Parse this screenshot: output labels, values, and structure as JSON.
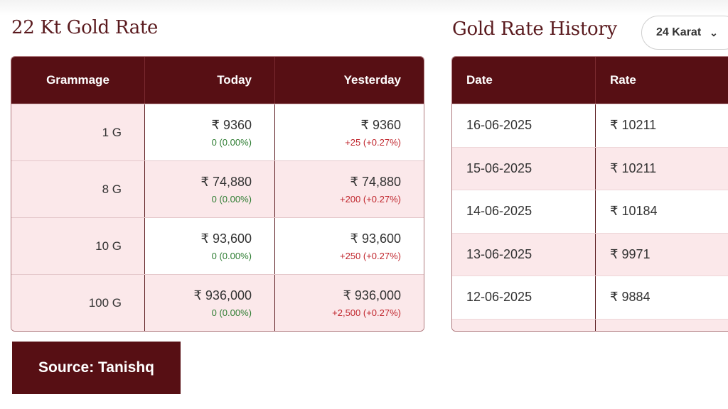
{
  "left_heading": "22 Kt Gold Rate",
  "right_heading": "Gold Rate History",
  "karat_select": {
    "value": "24 Karat"
  },
  "rate_table": {
    "headers": [
      "Grammage",
      "Today",
      "Yesterday"
    ],
    "rows": [
      {
        "grammage": "1 G",
        "today": "₹ 9360",
        "today_change": "0 (0.00%)",
        "yesterday": "₹ 9360",
        "yesterday_change": "+25 (+0.27%)"
      },
      {
        "grammage": "8 G",
        "today": "₹ 74,880",
        "today_change": "0 (0.00%)",
        "yesterday": "₹ 74,880",
        "yesterday_change": "+200 (+0.27%)"
      },
      {
        "grammage": "10 G",
        "today": "₹ 93,600",
        "today_change": "0 (0.00%)",
        "yesterday": "₹ 93,600",
        "yesterday_change": "+250 (+0.27%)"
      },
      {
        "grammage": "100 G",
        "today": "₹ 936,000",
        "today_change": "0 (0.00%)",
        "yesterday": "₹ 936,000",
        "yesterday_change": "+2,500 (+0.27%)"
      }
    ]
  },
  "history_table": {
    "headers": [
      "Date",
      "Rate"
    ],
    "rows": [
      {
        "date": "16-06-2025",
        "rate": "₹ 10211"
      },
      {
        "date": "15-06-2025",
        "rate": "₹ 10211"
      },
      {
        "date": "14-06-2025",
        "rate": "₹ 10184"
      },
      {
        "date": "13-06-2025",
        "rate": "₹ 9971"
      },
      {
        "date": "12-06-2025",
        "rate": "₹ 9884"
      }
    ]
  },
  "source_label": "Source: Tanishq",
  "colors": {
    "brand": "#570f14",
    "row_tint": "#fbe8ea",
    "positive": "#2e7d32",
    "negative": "#c0262d"
  }
}
